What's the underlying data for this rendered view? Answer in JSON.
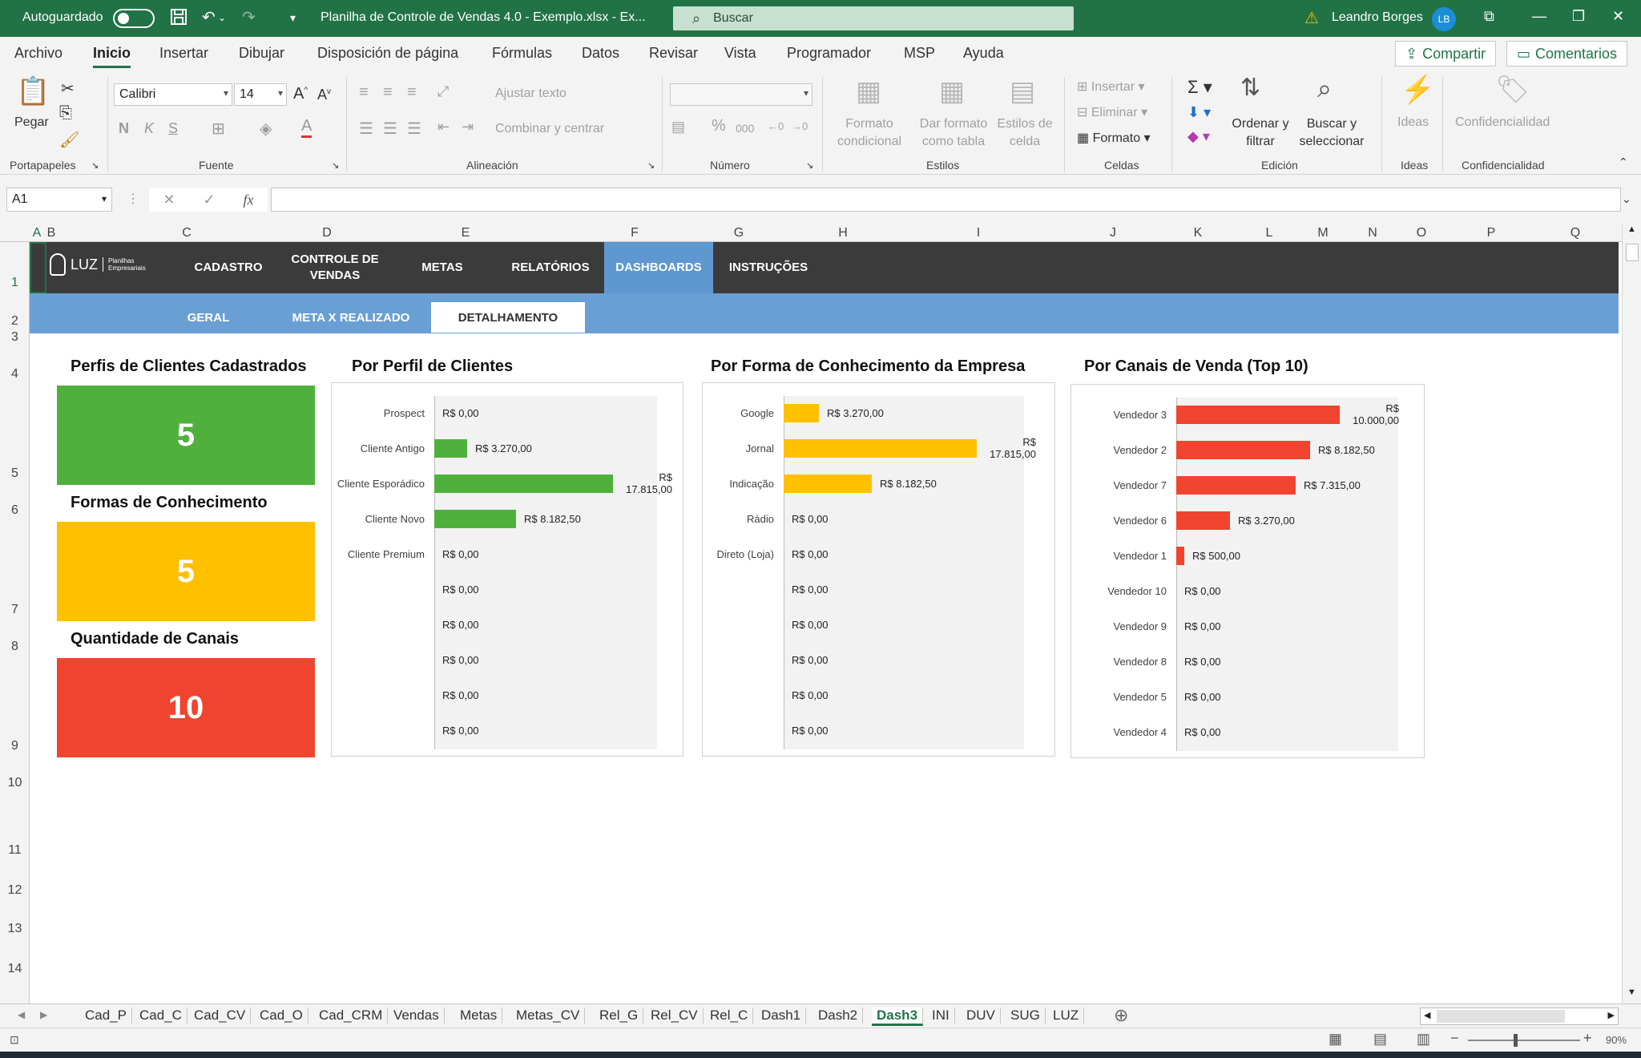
{
  "titlebar": {
    "autosave": "Autoguardado",
    "title": "Planilha de Controle de Vendas 4.0 - Exemplo.xlsx  -  Ex...",
    "search_placeholder": "Buscar",
    "user": "Leandro Borges",
    "initials": "LB"
  },
  "menu": [
    "Archivo",
    "Inicio",
    "Insertar",
    "Dibujar",
    "Disposición de página",
    "Fórmulas",
    "Datos",
    "Revisar",
    "Vista",
    "Programador",
    "MSP",
    "Ayuda"
  ],
  "menu_active": "Inicio",
  "share_label": "Compartir",
  "comments_label": "Comentarios",
  "ribbon": {
    "paste": "Pegar",
    "groups": {
      "clipboard": "Portapapeles",
      "font": "Fuente",
      "alignment": "Alineación",
      "number": "Número",
      "styles": "Estilos",
      "cells": "Celdas",
      "editing": "Edición",
      "ideas": "Ideas",
      "confidentiality": "Confidencialidad"
    },
    "font_name": "Calibri",
    "font_size": "14",
    "bold": "N",
    "italic": "K",
    "underline": "S",
    "wrap_text": "Ajustar texto",
    "merge_center": "Combinar y centrar",
    "cond_format": "Formato condicional",
    "format_table": "Dar formato como tabla",
    "cell_styles": "Estilos de celda",
    "insert": "Insertar",
    "delete": "Eliminar",
    "format": "Formato",
    "sort_filter": "Ordenar y filtrar",
    "find_select": "Buscar y seleccionar",
    "ideas": "Ideas",
    "confidentiality": "Confidencialidad"
  },
  "formula_bar": {
    "namebox": "A1",
    "fx": "fx",
    "content": ""
  },
  "columns": [
    "A",
    "B",
    "C",
    "D",
    "E",
    "F",
    "G",
    "H",
    "I",
    "J",
    "K",
    "L",
    "M",
    "N",
    "O",
    "P",
    "Q"
  ],
  "rows": [
    "1",
    "2",
    "3",
    "4",
    "5",
    "6",
    "7",
    "8",
    "9",
    "10",
    "11",
    "12",
    "13",
    "14"
  ],
  "dashboard": {
    "logo": "LUZ",
    "logo_sub_1": "Planilhas",
    "logo_sub_2": "Empresariais",
    "nav": [
      "CADASTRO",
      "CONTROLE DE VENDAS",
      "METAS",
      "RELATÓRIOS",
      "DASHBOARDS",
      "INSTRUÇÕES"
    ],
    "nav_active": "DASHBOARDS",
    "subnav": [
      "GERAL",
      "META X REALIZADO",
      "DETALHAMENTO"
    ],
    "subnav_active": "DETALHAMENTO",
    "kpis": [
      {
        "title": "Perfis de Clientes Cadastrados",
        "value": "5",
        "color": "#50b03c"
      },
      {
        "title": "Formas de Conhecimento",
        "value": "5",
        "color": "#ffc000"
      },
      {
        "title": "Quantidade de Canais",
        "value": "10",
        "color": "#f0442f"
      }
    ]
  },
  "chart_data": [
    {
      "type": "bar",
      "orientation": "horizontal",
      "title": "Por Perfil de Clientes",
      "color": "#50b03c",
      "categories": [
        "Prospect",
        "Cliente Antigo",
        "Cliente Esporádico",
        "Cliente Novo",
        "Cliente Premium",
        "",
        "",
        "",
        "",
        ""
      ],
      "values": [
        0,
        3270,
        17815,
        8182.5,
        0,
        0,
        0,
        0,
        0,
        0
      ],
      "labels": [
        "R$ 0,00",
        "R$ 3.270,00",
        "R$ 17.815,00",
        "R$ 8.182,50",
        "R$ 0,00",
        "R$ 0,00",
        "R$ 0,00",
        "R$ 0,00",
        "R$ 0,00",
        "R$ 0,00"
      ],
      "xlim": [
        0,
        20000
      ]
    },
    {
      "type": "bar",
      "orientation": "horizontal",
      "title": "Por Forma de Conhecimento da Empresa",
      "color": "#ffc000",
      "categories": [
        "Google",
        "Jornal",
        "Indicação",
        "Rádio",
        "Direto (Loja)",
        "",
        "",
        "",
        "",
        ""
      ],
      "values": [
        3270,
        17815,
        8182.5,
        0,
        0,
        0,
        0,
        0,
        0,
        0
      ],
      "labels": [
        "R$ 3.270,00",
        "R$ 17.815,00",
        "R$ 8.182,50",
        "R$ 0,00",
        "R$ 0,00",
        "R$ 0,00",
        "R$ 0,00",
        "R$ 0,00",
        "R$ 0,00",
        "R$ 0,00"
      ],
      "xlim": [
        0,
        20000
      ]
    },
    {
      "type": "bar",
      "orientation": "horizontal",
      "title": "Por Canais de Venda (Top 10)",
      "color": "#f0442f",
      "categories": [
        "Vendedor 3",
        "Vendedor 2",
        "Vendedor 7",
        "Vendedor 6",
        "Vendedor 1",
        "Vendedor 10",
        "Vendedor 9",
        "Vendedor 8",
        "Vendedor 5",
        "Vendedor 4"
      ],
      "values": [
        10000,
        8182.5,
        7315,
        3270,
        500,
        0,
        0,
        0,
        0,
        0
      ],
      "labels": [
        "R$ 10.000,00",
        "R$ 8.182,50",
        "R$ 7.315,00",
        "R$ 3.270,00",
        "R$ 500,00",
        "R$ 0,00",
        "R$ 0,00",
        "R$ 0,00",
        "R$ 0,00",
        "R$ 0,00"
      ],
      "xlim": [
        0,
        12000
      ]
    }
  ],
  "sheet_tabs": [
    "Cad_P",
    "Cad_C",
    "Cad_CV",
    "Cad_O",
    "Cad_CRM",
    "Vendas",
    "Metas",
    "Metas_CV",
    "Rel_G",
    "Rel_CV",
    "Rel_C",
    "Dash1",
    "Dash2",
    "Dash3",
    "INI",
    "DUV",
    "SUG",
    "LUZ"
  ],
  "sheet_active": "Dash3",
  "status": {
    "zoom": "90%"
  }
}
